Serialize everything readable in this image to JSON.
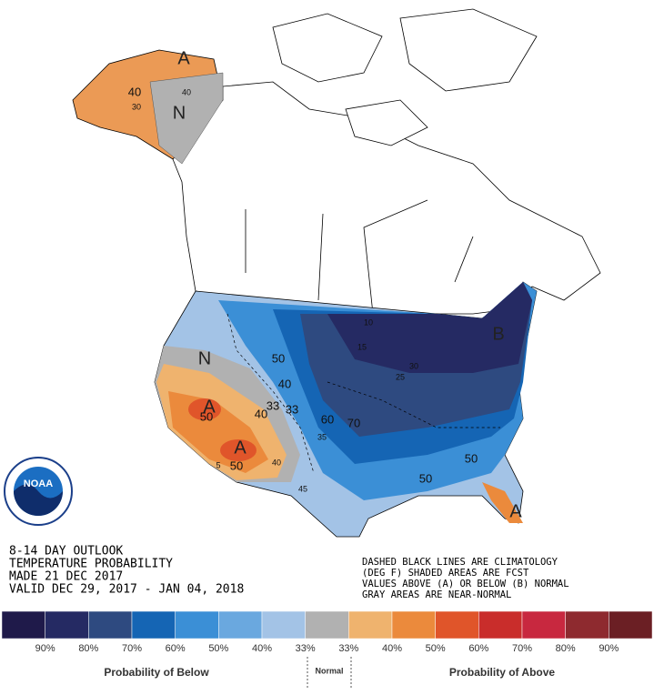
{
  "header": {
    "lines": [
      "8-14 DAY OUTLOOK",
      "TEMPERATURE PROBABILITY",
      "MADE  21 DEC 2017",
      "VALID  DEC 29, 2017 - JAN 04, 2018"
    ]
  },
  "notes": [
    "DASHED BLACK LINES ARE CLIMATOLOGY",
    "(DEG F) SHADED AREAS ARE FCST",
    "VALUES ABOVE (A) OR BELOW (B) NORMAL",
    "GRAY AREAS ARE NEAR-NORMAL"
  ],
  "logo": "NOAA",
  "map_labels": [
    "A",
    "N",
    "N",
    "A",
    "A",
    "B",
    "A",
    "50",
    "40",
    "33",
    "33",
    "40",
    "50",
    "60",
    "70",
    "50",
    "50",
    "40",
    "50",
    "40",
    "10",
    "15",
    "25",
    "30",
    "35",
    "45",
    "5",
    "40",
    "30"
  ],
  "legend": {
    "colors": [
      "#1f1a4a",
      "#252a63",
      "#2e4a80",
      "#1565b4",
      "#3b8fd6",
      "#6aa8df",
      "#a3c3e6",
      "#b1b1b1",
      "#efb36e",
      "#eb8a3c",
      "#e0552a",
      "#c92d2b",
      "#c8283f",
      "#8e2a2f",
      "#6b1f24"
    ],
    "labels": [
      "90%",
      "80%",
      "70%",
      "60%",
      "50%",
      "40%",
      "33%",
      "33%",
      "40%",
      "50%",
      "60%",
      "70%",
      "80%",
      "90%"
    ],
    "below": "Probability of Below",
    "normal": "Normal",
    "above": "Probability of Above"
  }
}
